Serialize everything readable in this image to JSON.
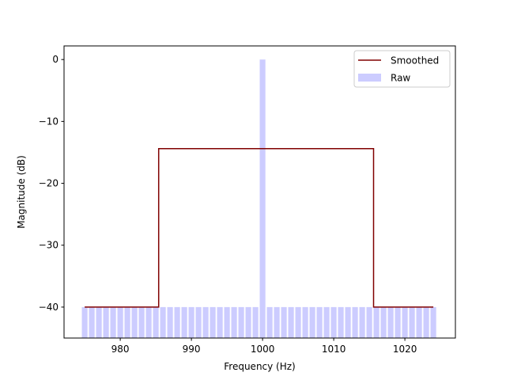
{
  "chart_data": {
    "type": "bar+line",
    "title": "",
    "xlabel": "Frequency (Hz)",
    "ylabel": "Magnitude (dB)",
    "xlim": [
      972.1,
      1027.1
    ],
    "ylim": [
      -45.0,
      2.2
    ],
    "xticks": [
      980,
      990,
      1000,
      1010,
      1020
    ],
    "yticks": [
      0,
      -10,
      -20,
      -30,
      -40
    ],
    "grid": false,
    "legend": {
      "position": "upper right",
      "entries": [
        "Smoothed",
        "Raw"
      ]
    },
    "series": [
      {
        "name": "Raw",
        "type": "bar",
        "color": "#ccccff",
        "bar_width": 0.8,
        "x_start": 975,
        "x_end": 1024,
        "x_step": 1,
        "baseline": -45,
        "default_value": -40,
        "peaks": [
          {
            "x": 1000,
            "value": 0
          }
        ]
      },
      {
        "name": "Smoothed",
        "type": "line",
        "color": "#800000",
        "points": [
          [
            975,
            -40
          ],
          [
            985.4,
            -40
          ],
          [
            985.4,
            -14.4
          ],
          [
            1015.6,
            -14.4
          ],
          [
            1015.6,
            -40
          ],
          [
            1024,
            -40
          ]
        ]
      }
    ]
  }
}
